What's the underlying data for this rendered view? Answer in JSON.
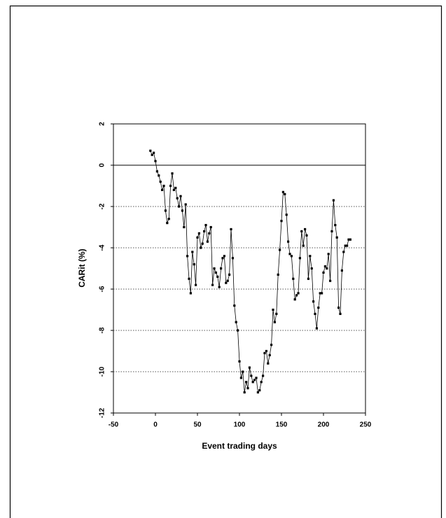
{
  "chart_data": {
    "type": "line",
    "xlabel": "Event trading days",
    "ylabel": "CARit (%)",
    "x": [
      -6,
      -4,
      -2,
      0,
      2,
      4,
      6,
      8,
      10,
      12,
      14,
      16,
      18,
      20,
      22,
      24,
      26,
      28,
      30,
      32,
      34,
      36,
      38,
      40,
      42,
      44,
      46,
      48,
      50,
      52,
      54,
      56,
      58,
      60,
      62,
      64,
      66,
      68,
      70,
      72,
      74,
      76,
      78,
      80,
      82,
      84,
      86,
      88,
      90,
      92,
      94,
      96,
      98,
      100,
      102,
      104,
      106,
      108,
      110,
      112,
      114,
      116,
      118,
      120,
      122,
      124,
      126,
      128,
      130,
      132,
      134,
      136,
      138,
      140,
      142,
      144,
      146,
      148,
      150,
      152,
      154,
      156,
      158,
      160,
      162,
      164,
      166,
      168,
      170,
      172,
      174,
      176,
      178,
      180,
      182,
      184,
      186,
      188,
      190,
      192,
      194,
      196,
      198,
      200,
      202,
      204,
      206,
      208,
      210,
      212,
      214,
      216,
      218,
      220,
      222,
      224,
      226,
      228,
      230,
      232
    ],
    "series": [
      {
        "name": "CARit",
        "color": "#000000",
        "values": [
          0.7,
          0.5,
          0.6,
          0.2,
          -0.3,
          -0.5,
          -0.8,
          -1.2,
          -1.0,
          -2.2,
          -2.8,
          -2.6,
          -1.0,
          -0.4,
          -1.2,
          -1.1,
          -1.6,
          -2.0,
          -1.5,
          -2.2,
          -3.0,
          -1.9,
          -4.4,
          -5.5,
          -6.2,
          -4.2,
          -4.8,
          -5.8,
          -3.5,
          -3.3,
          -4.0,
          -3.8,
          -3.2,
          -2.9,
          -3.7,
          -3.3,
          -3.0,
          -5.8,
          -5.0,
          -5.2,
          -5.4,
          -5.9,
          -5.0,
          -4.5,
          -4.4,
          -5.7,
          -5.6,
          -5.3,
          -3.1,
          -4.5,
          -6.8,
          -7.6,
          -8.0,
          -9.5,
          -10.3,
          -10.0,
          -11.0,
          -10.5,
          -10.8,
          -9.8,
          -10.2,
          -10.5,
          -10.4,
          -10.3,
          -11.0,
          -10.9,
          -10.5,
          -10.2,
          -9.1,
          -9.0,
          -9.6,
          -9.2,
          -8.7,
          -7.0,
          -7.6,
          -7.2,
          -5.3,
          -4.1,
          -2.7,
          -1.3,
          -1.4,
          -2.4,
          -3.7,
          -4.3,
          -4.4,
          -5.5,
          -6.5,
          -6.3,
          -6.2,
          -4.5,
          -3.2,
          -3.9,
          -3.1,
          -3.4,
          -5.5,
          -4.4,
          -5.0,
          -6.6,
          -7.2,
          -7.9,
          -6.9,
          -6.2,
          -6.2,
          -5.2,
          -4.9,
          -5.0,
          -4.3,
          -5.6,
          -3.2,
          -1.7,
          -2.9,
          -3.5,
          -6.9,
          -7.2,
          -5.1,
          -4.2,
          -3.9,
          -3.9,
          -3.6,
          -3.6
        ]
      }
    ],
    "xlim": [
      -50,
      250
    ],
    "xticks": [
      -50,
      0,
      50,
      100,
      150,
      200,
      250
    ],
    "ylim": [
      -12,
      2
    ],
    "yticks": [
      2,
      0,
      -2,
      -4,
      -6,
      -8,
      -10,
      -12
    ],
    "grid": true,
    "zero_line": true,
    "markers": true
  }
}
